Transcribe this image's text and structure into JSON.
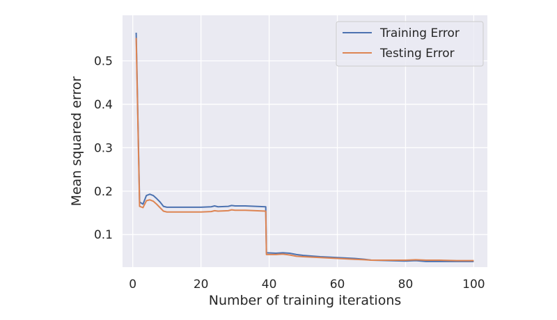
{
  "chart_data": {
    "type": "line",
    "xlabel": "Number of training iterations",
    "ylabel": "Mean squared error",
    "xlim": [
      -3,
      104
    ],
    "ylim": [
      0.025,
      0.605
    ],
    "xticks": [
      0,
      20,
      40,
      60,
      80,
      100
    ],
    "yticks": [
      0.1,
      0.2,
      0.3,
      0.4,
      0.5
    ],
    "ytick_labels": [
      "0.1",
      "0.2",
      "0.3",
      "0.4",
      "0.5"
    ],
    "xtick_labels": [
      "0",
      "20",
      "40",
      "60",
      "80",
      "100"
    ],
    "grid": true,
    "legend_position": "top-right",
    "series": [
      {
        "name": "Training Error",
        "color": "#4c72b0",
        "points": [
          [
            1,
            0.565
          ],
          [
            2,
            0.175
          ],
          [
            3,
            0.17
          ],
          [
            4,
            0.19
          ],
          [
            5,
            0.193
          ],
          [
            6,
            0.19
          ],
          [
            7,
            0.183
          ],
          [
            8,
            0.175
          ],
          [
            9,
            0.165
          ],
          [
            10,
            0.163
          ],
          [
            15,
            0.163
          ],
          [
            20,
            0.163
          ],
          [
            23,
            0.164
          ],
          [
            24,
            0.166
          ],
          [
            25,
            0.164
          ],
          [
            28,
            0.165
          ],
          [
            29,
            0.167
          ],
          [
            30,
            0.166
          ],
          [
            33,
            0.166
          ],
          [
            36,
            0.165
          ],
          [
            39,
            0.164
          ],
          [
            39.2,
            0.058
          ],
          [
            42,
            0.057
          ],
          [
            44,
            0.058
          ],
          [
            46,
            0.057
          ],
          [
            48,
            0.054
          ],
          [
            50,
            0.052
          ],
          [
            55,
            0.049
          ],
          [
            60,
            0.047
          ],
          [
            65,
            0.045
          ],
          [
            68,
            0.043
          ],
          [
            70,
            0.041
          ],
          [
            75,
            0.04
          ],
          [
            80,
            0.039
          ],
          [
            83,
            0.04
          ],
          [
            86,
            0.038
          ],
          [
            90,
            0.038
          ],
          [
            95,
            0.038
          ],
          [
            100,
            0.038
          ]
        ]
      },
      {
        "name": "Testing Error",
        "color": "#dd8452",
        "points": [
          [
            1,
            0.553
          ],
          [
            2,
            0.165
          ],
          [
            3,
            0.162
          ],
          [
            4,
            0.178
          ],
          [
            5,
            0.18
          ],
          [
            6,
            0.177
          ],
          [
            7,
            0.17
          ],
          [
            8,
            0.162
          ],
          [
            9,
            0.154
          ],
          [
            10,
            0.152
          ],
          [
            15,
            0.152
          ],
          [
            20,
            0.152
          ],
          [
            23,
            0.153
          ],
          [
            24,
            0.155
          ],
          [
            25,
            0.154
          ],
          [
            28,
            0.155
          ],
          [
            29,
            0.157
          ],
          [
            30,
            0.156
          ],
          [
            33,
            0.156
          ],
          [
            36,
            0.155
          ],
          [
            39,
            0.154
          ],
          [
            39.2,
            0.054
          ],
          [
            42,
            0.054
          ],
          [
            44,
            0.055
          ],
          [
            46,
            0.053
          ],
          [
            48,
            0.05
          ],
          [
            50,
            0.049
          ],
          [
            55,
            0.047
          ],
          [
            60,
            0.045
          ],
          [
            65,
            0.043
          ],
          [
            68,
            0.042
          ],
          [
            70,
            0.041
          ],
          [
            75,
            0.041
          ],
          [
            80,
            0.041
          ],
          [
            83,
            0.042
          ],
          [
            86,
            0.041
          ],
          [
            90,
            0.041
          ],
          [
            95,
            0.04
          ],
          [
            100,
            0.04
          ]
        ]
      }
    ]
  }
}
